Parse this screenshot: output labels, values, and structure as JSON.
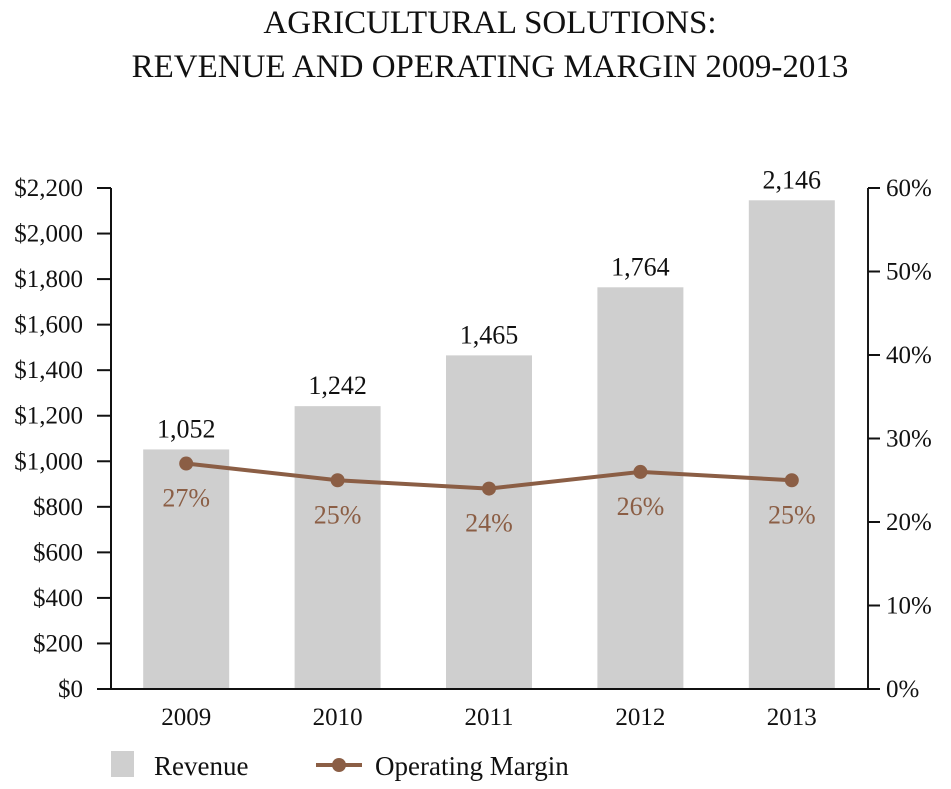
{
  "chart_data": {
    "type": "bar",
    "title": [
      "AGRICULTURAL SOLUTIONS:",
      "REVENUE AND OPERATING MARGIN 2009-2013"
    ],
    "categories": [
      "2009",
      "2010",
      "2011",
      "2012",
      "2013"
    ],
    "series": [
      {
        "name": "Revenue",
        "type": "bar",
        "axis": "left",
        "values": [
          1052,
          1242,
          1465,
          1764,
          2146
        ],
        "labels": [
          "1,052",
          "1,242",
          "1,465",
          "1,764",
          "2,146"
        ],
        "color": "#cfcfcf"
      },
      {
        "name": "Operating Margin",
        "type": "line",
        "axis": "right",
        "values": [
          27,
          25,
          24,
          26,
          25
        ],
        "labels": [
          "27%",
          "25%",
          "24%",
          "26%",
          "25%"
        ],
        "color": "#8b5e45"
      }
    ],
    "left_axis": {
      "ylim": [
        0,
        2200
      ],
      "ticks": [
        "$0",
        "$200",
        "$400",
        "$600",
        "$800",
        "$1,000",
        "$1,200",
        "$1,400",
        "$1,600",
        "$1,800",
        "$2,000",
        "$2,200"
      ]
    },
    "right_axis": {
      "ylim": [
        0,
        60
      ],
      "ticks": [
        "0%",
        "10%",
        "20%",
        "30%",
        "40%",
        "50%",
        "60%"
      ]
    },
    "grid": false,
    "legend": "bottom"
  }
}
